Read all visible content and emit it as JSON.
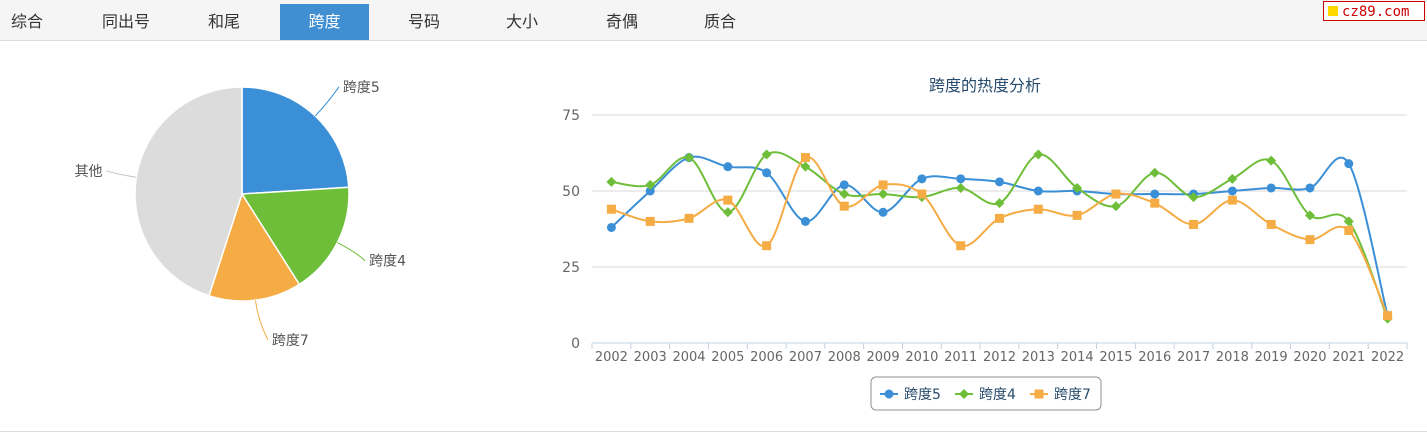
{
  "tabs": [
    {
      "label": "综合",
      "active": false
    },
    {
      "label": "同出号",
      "active": false
    },
    {
      "label": "和尾",
      "active": false
    },
    {
      "label": "跨度",
      "active": true
    },
    {
      "label": "号码",
      "active": false
    },
    {
      "label": "大小",
      "active": false
    },
    {
      "label": "奇偶",
      "active": false
    },
    {
      "label": "质合",
      "active": false
    }
  ],
  "logo": {
    "text": "cz89.com"
  },
  "colors": {
    "s5": "#3a8fd6",
    "s4": "#6ebe3a",
    "s7": "#f5ac45",
    "other": "#dcdcdc",
    "title": "#274b6d",
    "axis": "#666666",
    "grid": "#d8d8d8",
    "active_tab": "#3f8fd2"
  },
  "chart_data": [
    {
      "type": "pie",
      "slices": [
        {
          "label": "跨度5",
          "value": 24,
          "color": "#3a8fd6"
        },
        {
          "label": "跨度4",
          "value": 17,
          "color": "#6ebe3a"
        },
        {
          "label": "跨度7",
          "value": 14,
          "color": "#f5ac45"
        },
        {
          "label": "其他",
          "value": 45,
          "color": "#dcdcdc"
        }
      ]
    },
    {
      "type": "line",
      "title": "跨度的热度分析",
      "categories": [
        "2002",
        "2003",
        "2004",
        "2005",
        "2006",
        "2007",
        "2008",
        "2009",
        "2010",
        "2011",
        "2012",
        "2013",
        "2014",
        "2015",
        "2016",
        "2017",
        "2018",
        "2019",
        "2020",
        "2021",
        "2022"
      ],
      "ylim": [
        0,
        75
      ],
      "yticks": [
        0,
        25,
        50,
        75
      ],
      "grid": true,
      "legend": "bottom",
      "series": [
        {
          "name": "跨度5",
          "marker": "circle",
          "color": "#3a8fd6",
          "values": [
            38,
            50,
            61,
            58,
            56,
            40,
            52,
            43,
            54,
            54,
            53,
            50,
            50,
            49,
            49,
            49,
            50,
            51,
            51,
            59,
            9
          ]
        },
        {
          "name": "跨度4",
          "marker": "diamond",
          "color": "#6ebe3a",
          "values": [
            53,
            52,
            61,
            43,
            62,
            58,
            49,
            49,
            48,
            51,
            46,
            62,
            51,
            45,
            56,
            48,
            54,
            60,
            42,
            40,
            8
          ]
        },
        {
          "name": "跨度7",
          "marker": "square",
          "color": "#f5ac45",
          "values": [
            44,
            40,
            41,
            47,
            32,
            61,
            45,
            52,
            49,
            32,
            41,
            44,
            42,
            49,
            46,
            39,
            47,
            39,
            34,
            37,
            9
          ]
        }
      ]
    }
  ]
}
